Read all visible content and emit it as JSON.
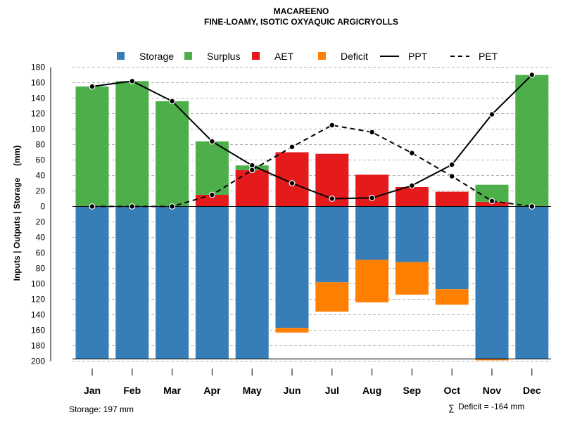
{
  "chart_data": {
    "type": "bar",
    "title": "MACAREENO",
    "subtitle": "FINE-LOAMY, ISOTIC OXYAQUIC ARGICRYOLLS",
    "ylabel": "Inputs | Outputs | Storage     (mm)",
    "ylim": [
      -200,
      180
    ],
    "y_ticks": [
      180,
      160,
      140,
      120,
      100,
      80,
      60,
      40,
      20,
      0,
      -20,
      -40,
      -60,
      -80,
      -100,
      -120,
      -140,
      -160,
      -180,
      -200
    ],
    "y_tick_labels": [
      "180",
      "160",
      "140",
      "120",
      "100",
      "80",
      "60",
      "40",
      "20",
      "0",
      "20",
      "40",
      "60",
      "80",
      "100",
      "120",
      "140",
      "160",
      "180",
      "200"
    ],
    "categories": [
      "Jan",
      "Feb",
      "Mar",
      "Apr",
      "May",
      "Jun",
      "Jul",
      "Aug",
      "Sep",
      "Oct",
      "Nov",
      "Dec"
    ],
    "legend": [
      {
        "label": "Storage",
        "kind": "square",
        "color": "#377EB8"
      },
      {
        "label": "Surplus",
        "kind": "square",
        "color": "#4DAF4A"
      },
      {
        "label": "AET",
        "kind": "square",
        "color": "#E41A1C"
      },
      {
        "label": "Deficit",
        "kind": "square",
        "color": "#FF7F00"
      },
      {
        "label": "PPT",
        "kind": "solid-line",
        "color": "#000000"
      },
      {
        "label": "PET",
        "kind": "dashed-line",
        "color": "#000000"
      }
    ],
    "series": [
      {
        "name": "Storage",
        "color": "#377EB8",
        "values": [
          197,
          197,
          197,
          197,
          197,
          157,
          98,
          69,
          72,
          107,
          197,
          197
        ]
      },
      {
        "name": "Deficit",
        "color": "#FF7F00",
        "values": [
          0,
          0,
          0,
          0,
          0,
          6,
          38,
          55,
          42,
          20,
          2,
          0
        ]
      },
      {
        "name": "AET",
        "color": "#E41A1C",
        "values": [
          0,
          0,
          0,
          15,
          47,
          70,
          68,
          41,
          25,
          19,
          6,
          0
        ]
      },
      {
        "name": "Surplus",
        "color": "#4DAF4A",
        "values": [
          155,
          162,
          136,
          69,
          6,
          0,
          0,
          0,
          0,
          0,
          22,
          170
        ]
      },
      {
        "name": "PPT",
        "color": "#000000",
        "values": [
          155,
          162,
          136,
          84,
          53,
          30,
          10,
          11,
          27,
          54,
          119,
          170
        ]
      },
      {
        "name": "PET",
        "color": "#000000",
        "values": [
          0,
          0,
          0,
          15,
          47,
          77,
          105,
          96,
          69,
          39,
          7,
          0
        ]
      }
    ],
    "footer_left": "Storage: 197 mm",
    "footer_right": "Deficit = -164 mm",
    "footer_right_symbol": "∑"
  }
}
